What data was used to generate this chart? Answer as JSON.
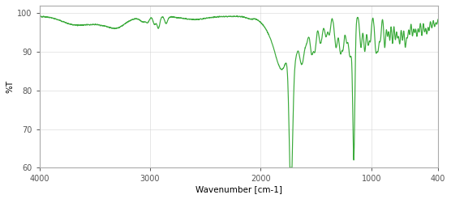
{
  "xlabel": "Wavenumber [cm-1]",
  "ylabel": "%T",
  "xlim": [
    4000,
    400
  ],
  "ylim": [
    60,
    102
  ],
  "yticks": [
    60,
    70,
    80,
    90,
    100
  ],
  "xticks": [
    4000,
    3000,
    2000,
    1000,
    400
  ],
  "line_color": "#3aaa3a",
  "bg_color": "#ffffff",
  "line_width": 0.85
}
